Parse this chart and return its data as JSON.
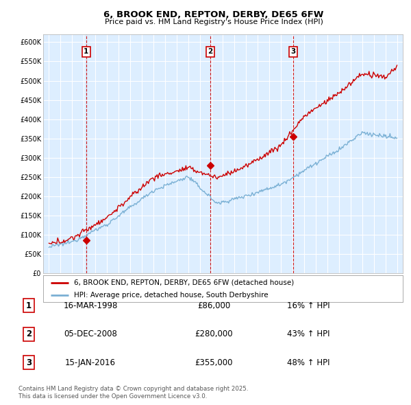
{
  "title": "6, BROOK END, REPTON, DERBY, DE65 6FW",
  "subtitle": "Price paid vs. HM Land Registry's House Price Index (HPI)",
  "legend_line1": "6, BROOK END, REPTON, DERBY, DE65 6FW (detached house)",
  "legend_line2": "HPI: Average price, detached house, South Derbyshire",
  "footer1": "Contains HM Land Registry data © Crown copyright and database right 2025.",
  "footer2": "This data is licensed under the Open Government Licence v3.0.",
  "transactions": [
    {
      "num": 1,
      "date": "16-MAR-1998",
      "price": "£86,000",
      "hpi_pct": "16% ↑ HPI",
      "year": 1998.21,
      "price_val": 86000
    },
    {
      "num": 2,
      "date": "05-DEC-2008",
      "price": "£280,000",
      "hpi_pct": "43% ↑ HPI",
      "year": 2008.92,
      "price_val": 280000
    },
    {
      "num": 3,
      "date": "15-JAN-2016",
      "price": "£355,000",
      "hpi_pct": "48% ↑ HPI",
      "year": 2016.04,
      "price_val": 355000
    }
  ],
  "red_color": "#cc0000",
  "blue_color": "#7ab0d4",
  "bg_color": "#ddeeff",
  "grid_color": "#ffffff",
  "ylim": [
    0,
    620000
  ],
  "ytick_vals": [
    0,
    50000,
    100000,
    150000,
    200000,
    250000,
    300000,
    350000,
    400000,
    450000,
    500000,
    550000,
    600000
  ],
  "ytick_labels": [
    "£0",
    "£50K",
    "£100K",
    "£150K",
    "£200K",
    "£250K",
    "£300K",
    "£350K",
    "£400K",
    "£450K",
    "£500K",
    "£550K",
    "£600K"
  ],
  "xlim": [
    1994.5,
    2025.5
  ],
  "xticks": [
    1995,
    1996,
    1997,
    1998,
    1999,
    2000,
    2001,
    2002,
    2003,
    2004,
    2005,
    2006,
    2007,
    2008,
    2009,
    2010,
    2011,
    2012,
    2013,
    2014,
    2015,
    2016,
    2017,
    2018,
    2019,
    2020,
    2021,
    2022,
    2023,
    2024,
    2025
  ]
}
